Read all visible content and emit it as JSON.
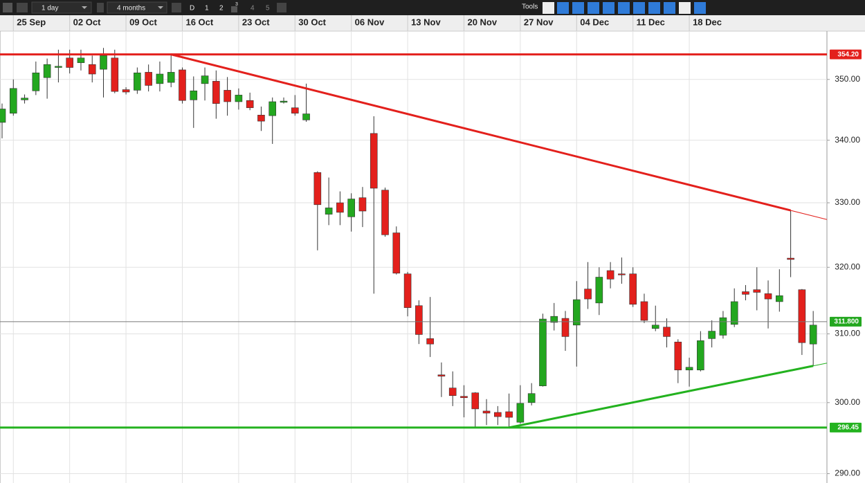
{
  "toolbar": {
    "interval": "1 day",
    "range": "4 months",
    "buttons": [
      "D",
      "1",
      "2",
      "3",
      "4",
      "5"
    ],
    "tools": "Tools"
  },
  "chart_data": {
    "type": "candlestick",
    "log_scale": true,
    "grid": true,
    "categories": [
      null,
      "25 Sep",
      null,
      null,
      null,
      null,
      "02 Oct",
      null,
      null,
      null,
      null,
      "09 Oct",
      null,
      null,
      null,
      null,
      "16 Oct",
      null,
      null,
      null,
      null,
      "23 Oct",
      null,
      null,
      null,
      null,
      "30 Oct",
      null,
      null,
      null,
      null,
      "06 Nov",
      null,
      null,
      null,
      null,
      "13 Nov",
      null,
      null,
      null,
      null,
      "20 Nov",
      null,
      null,
      null,
      null,
      "27 Nov",
      null,
      null,
      null,
      null,
      "04 Dec",
      null,
      null,
      null,
      null,
      "11 Dec",
      null,
      null,
      null,
      null,
      "18 Dec",
      null,
      null,
      null,
      null,
      null,
      null,
      null,
      null,
      null,
      null,
      null
    ],
    "open": [
      342.9,
      344.4,
      346.6,
      348.1,
      350.3,
      352.0,
      353.6,
      352.8,
      352.5,
      351.7,
      353.6,
      348.3,
      348.2,
      351.2,
      349.3,
      349.5,
      351.6,
      346.6,
      349.3,
      349.7,
      348.2,
      346.3,
      346.5,
      344.1,
      344.0,
      346.2,
      345.3,
      343.3,
      334.8,
      328.2,
      330.0,
      327.8,
      330.8,
      341.1,
      332.0,
      325.3,
      319.0,
      314.2,
      309.3,
      304.0,
      302.1,
      300.9,
      301.4,
      298.8,
      298.6,
      298.7,
      297.2,
      300.0,
      302.4,
      311.7,
      312.3,
      311.3,
      316.7,
      314.6,
      319.5,
      319.0,
      319.0,
      314.8,
      310.8,
      311.0,
      308.8,
      304.7,
      304.7,
      309.3,
      309.8,
      311.4,
      316.3,
      316.6,
      316.0,
      314.8,
      321.4,
      316.6,
      308.5
    ],
    "high": [
      346.0,
      350.0,
      347.5,
      353.0,
      353.5,
      355.0,
      355.0,
      355.0,
      354.0,
      355.3,
      355.0,
      348.7,
      352.0,
      352.5,
      353.0,
      354.2,
      352.0,
      350.5,
      352.0,
      351.5,
      350.4,
      348.5,
      347.8,
      345.5,
      347.0,
      347.0,
      347.4,
      349.3,
      335.0,
      334.0,
      331.8,
      331.5,
      332.5,
      343.9,
      332.4,
      326.3,
      319.3,
      315.0,
      315.5,
      305.8,
      304.5,
      302.5,
      301.5,
      300.5,
      299.5,
      301.3,
      302.5,
      302.8,
      313.0,
      314.6,
      313.4,
      317.9,
      320.8,
      320.0,
      320.8,
      321.5,
      320.0,
      316.0,
      314.2,
      312.3,
      309.2,
      306.5,
      310.4,
      312.0,
      313.4,
      316.8,
      317.3,
      320.0,
      318.0,
      319.7,
      328.8,
      316.7,
      313.4
    ],
    "low": [
      340.3,
      344.0,
      346.0,
      347.4,
      346.8,
      349.5,
      351.0,
      351.5,
      349.5,
      347.0,
      347.7,
      347.5,
      347.6,
      348.0,
      348.0,
      348.7,
      346.0,
      342.0,
      346.5,
      343.5,
      344.0,
      345.0,
      344.9,
      341.5,
      339.4,
      346.0,
      344.0,
      343.0,
      322.6,
      326.5,
      326.5,
      325.5,
      326.2,
      316.0,
      324.7,
      318.9,
      312.6,
      308.5,
      306.6,
      300.8,
      299.5,
      297.9,
      296.4,
      296.8,
      296.8,
      296.5,
      297.0,
      299.6,
      302.3,
      310.5,
      307.5,
      305.2,
      313.7,
      312.8,
      316.8,
      317.5,
      314.0,
      311.6,
      310.4,
      308.0,
      302.8,
      302.3,
      304.5,
      308.0,
      309.3,
      311.0,
      315.0,
      313.5,
      310.8,
      313.3,
      318.5,
      306.9,
      305.3
    ],
    "close": [
      345.1,
      348.5,
      346.9,
      351.1,
      352.5,
      352.2,
      352.0,
      353.6,
      350.9,
      354.0,
      348.0,
      347.9,
      351.1,
      349.0,
      350.9,
      351.2,
      346.5,
      348.1,
      350.6,
      346.0,
      346.3,
      347.4,
      345.3,
      343.1,
      346.3,
      346.4,
      344.4,
      344.3,
      329.7,
      329.2,
      328.5,
      330.6,
      328.7,
      332.3,
      325.0,
      319.1,
      313.9,
      309.9,
      308.5,
      303.8,
      301.0,
      300.7,
      299.1,
      298.5,
      298.0,
      297.9,
      299.9,
      301.3,
      312.2,
      312.6,
      309.6,
      315.1,
      315.2,
      318.5,
      318.2,
      318.9,
      314.4,
      312.0,
      311.3,
      309.6,
      304.7,
      305.1,
      309.0,
      310.4,
      312.4,
      314.8,
      315.9,
      316.2,
      315.2,
      315.7,
      321.2,
      308.7,
      311.3
    ],
    "up_color": "#23a71f",
    "down_color": "#e3201c",
    "ylim": [
      289,
      357.8
    ],
    "yticks": [
      {
        "value": 290,
        "label": "290.00"
      },
      {
        "value": 300,
        "label": "300.00"
      },
      {
        "value": 310,
        "label": "310.00"
      },
      {
        "value": 320,
        "label": "320.00"
      },
      {
        "value": 330,
        "label": "330.00"
      },
      {
        "value": 340,
        "label": "340.00"
      },
      {
        "value": 350,
        "label": "350.00"
      }
    ],
    "horizontal_lines": [
      {
        "value": 354.2,
        "value_label": "354.20",
        "color": "#e3201c"
      },
      {
        "value": 296.45,
        "value_label": "296.45",
        "color": "#23b21f"
      },
      {
        "value": 311.8,
        "value_label": "311.800",
        "color": "#777777",
        "label_color": "#23a71f"
      }
    ],
    "trend_lines": [
      {
        "color": "#e3201c",
        "indices": [
          15,
          70
        ],
        "values": [
          354.2,
          328.8
        ]
      },
      {
        "color": "#23b21f",
        "indices": [
          45,
          72
        ],
        "values": [
          296.45,
          305.3
        ]
      }
    ]
  }
}
